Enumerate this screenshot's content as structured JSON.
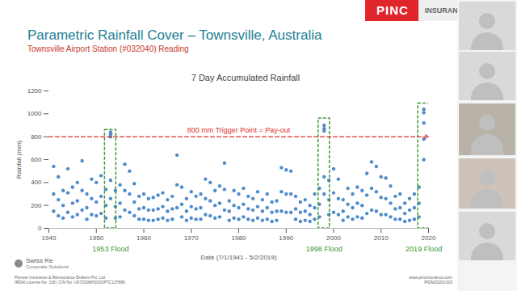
{
  "slide": {
    "title": "Parametric Rainfall Cover – Townsville, Australia",
    "subtitle": "Townsville Airport Station (#032040) Reading",
    "logo": [
      "PINC",
      "INSURANCE"
    ],
    "partner": [
      "Swiss Re",
      "Corporate Solutions"
    ],
    "footer_left": [
      "Pioneer Insurance & Reinsurance Brokers Pvt. Ltd.",
      "IRDAI License No. 118 | CIN No: U67200MH2002PTC137896"
    ],
    "footer_right": [
      "www.pincinsurance.com",
      "PIDM20201003"
    ]
  },
  "chart_data": {
    "type": "scatter",
    "title": "7 Day Accumulated Rainfall",
    "x_label": "Date (7/1/1941 - 5/2/2019)",
    "y_label": "Rainfall (mm)",
    "color": "#4f8ccb",
    "marker": "circle",
    "grid": false,
    "x": [
      1941,
      1941,
      1941,
      1942,
      1942,
      1942,
      1943,
      1943,
      1943,
      1944,
      1944,
      1944,
      1945,
      1945,
      1945,
      1946,
      1946,
      1946,
      1947,
      1947,
      1947,
      1948,
      1948,
      1948,
      1949,
      1949,
      1949,
      1950,
      1950,
      1950,
      1951,
      1951,
      1951,
      1952,
      1952,
      1952,
      1953,
      1953,
      1953,
      1954,
      1954,
      1954,
      1955,
      1955,
      1955,
      1956,
      1956,
      1956,
      1957,
      1957,
      1957,
      1958,
      1958,
      1958,
      1959,
      1959,
      1959,
      1960,
      1960,
      1960,
      1961,
      1961,
      1961,
      1962,
      1962,
      1962,
      1963,
      1963,
      1963,
      1964,
      1964,
      1964,
      1965,
      1965,
      1965,
      1966,
      1966,
      1966,
      1967,
      1967,
      1967,
      1968,
      1968,
      1968,
      1969,
      1969,
      1969,
      1970,
      1970,
      1970,
      1971,
      1971,
      1971,
      1972,
      1972,
      1972,
      1973,
      1973,
      1973,
      1974,
      1974,
      1974,
      1975,
      1975,
      1975,
      1976,
      1976,
      1976,
      1977,
      1977,
      1977,
      1978,
      1978,
      1978,
      1979,
      1979,
      1979,
      1980,
      1980,
      1980,
      1981,
      1981,
      1981,
      1982,
      1982,
      1982,
      1983,
      1983,
      1983,
      1984,
      1984,
      1984,
      1985,
      1985,
      1985,
      1986,
      1986,
      1986,
      1987,
      1987,
      1987,
      1988,
      1988,
      1988,
      1989,
      1989,
      1989,
      1990,
      1990,
      1990,
      1991,
      1991,
      1991,
      1992,
      1992,
      1992,
      1993,
      1993,
      1993,
      1994,
      1994,
      1994,
      1995,
      1995,
      1995,
      1996,
      1996,
      1996,
      1997,
      1997,
      1997,
      1998,
      1998,
      1998,
      1999,
      1999,
      1999,
      2000,
      2000,
      2000,
      2001,
      2001,
      2001,
      2002,
      2002,
      2002,
      2003,
      2003,
      2003,
      2004,
      2004,
      2004,
      2005,
      2005,
      2005,
      2006,
      2006,
      2006,
      2007,
      2007,
      2007,
      2008,
      2008,
      2008,
      2009,
      2009,
      2009,
      2010,
      2010,
      2010,
      2011,
      2011,
      2011,
      2012,
      2012,
      2012,
      2013,
      2013,
      2013,
      2014,
      2014,
      2014,
      2015,
      2015,
      2015,
      2016,
      2016,
      2016,
      2017,
      2017,
      2017,
      2018,
      2018,
      2018,
      2019,
      2019,
      2019,
      1953,
      1953,
      1998,
      1998,
      2019,
      2019
    ],
    "values": [
      540,
      300,
      150,
      450,
      250,
      110,
      330,
      200,
      90,
      520,
      310,
      140,
      360,
      220,
      100,
      400,
      240,
      120,
      590,
      330,
      160,
      300,
      180,
      80,
      430,
      260,
      120,
      400,
      230,
      110,
      460,
      280,
      130,
      340,
      200,
      90,
      840,
      800,
      420,
      330,
      190,
      90,
      380,
      220,
      100,
      560,
      330,
      160,
      500,
      300,
      140,
      390,
      230,
      110,
      280,
      170,
      80,
      300,
      180,
      80,
      260,
      160,
      70,
      270,
      160,
      70,
      290,
      170,
      80,
      310,
      190,
      90,
      250,
      150,
      70,
      280,
      170,
      80,
      640,
      380,
      180,
      360,
      210,
      100,
      260,
      150,
      70,
      320,
      190,
      90,
      280,
      170,
      80,
      300,
      180,
      80,
      430,
      260,
      120,
      400,
      240,
      110,
      330,
      200,
      90,
      370,
      220,
      100,
      570,
      340,
      160,
      240,
      150,
      70,
      330,
      200,
      90,
      300,
      180,
      80,
      350,
      210,
      100,
      280,
      170,
      80,
      260,
      160,
      70,
      320,
      190,
      90,
      250,
      150,
      70,
      300,
      180,
      80,
      230,
      140,
      60,
      240,
      150,
      70,
      530,
      320,
      150,
      510,
      300,
      140,
      500,
      300,
      140,
      280,
      170,
      80,
      230,
      140,
      60,
      250,
      150,
      70,
      200,
      120,
      60,
      300,
      180,
      80,
      350,
      210,
      100,
      900,
      870,
      450,
      420,
      250,
      120,
      520,
      310,
      140,
      430,
      260,
      120,
      250,
      150,
      70,
      350,
      210,
      100,
      300,
      180,
      80,
      360,
      220,
      100,
      330,
      200,
      90,
      480,
      290,
      130,
      580,
      350,
      160,
      540,
      320,
      150,
      450,
      270,
      120,
      440,
      260,
      120,
      370,
      220,
      100,
      280,
      170,
      80,
      300,
      180,
      80,
      220,
      130,
      60,
      260,
      160,
      70,
      300,
      180,
      80,
      360,
      220,
      100,
      1040,
      920,
      600,
      820,
      260,
      850,
      300,
      1010,
      780
    ],
    "xlim": [
      1940,
      2020
    ],
    "xticks": [
      1940,
      1950,
      1960,
      1970,
      1980,
      1990,
      2000,
      2010,
      2020
    ],
    "ylim": [
      0,
      1200
    ],
    "yticks": [
      0,
      200,
      400,
      600,
      800,
      1000,
      1200
    ],
    "threshold": {
      "value": 800,
      "label": "800 mm Trigger Point = Pay-out",
      "color": "#e0302a"
    },
    "highlights": [
      {
        "label": "1953 Flood",
        "x": 1953,
        "ylim": [
          0,
          860
        ]
      },
      {
        "label": "1998 Flood",
        "x": 1998,
        "ylim": [
          0,
          960
        ]
      },
      {
        "label": "2019 Flood",
        "x": 2019,
        "ylim": [
          0,
          1090
        ]
      }
    ],
    "highlight_color": "#3c9a35"
  }
}
